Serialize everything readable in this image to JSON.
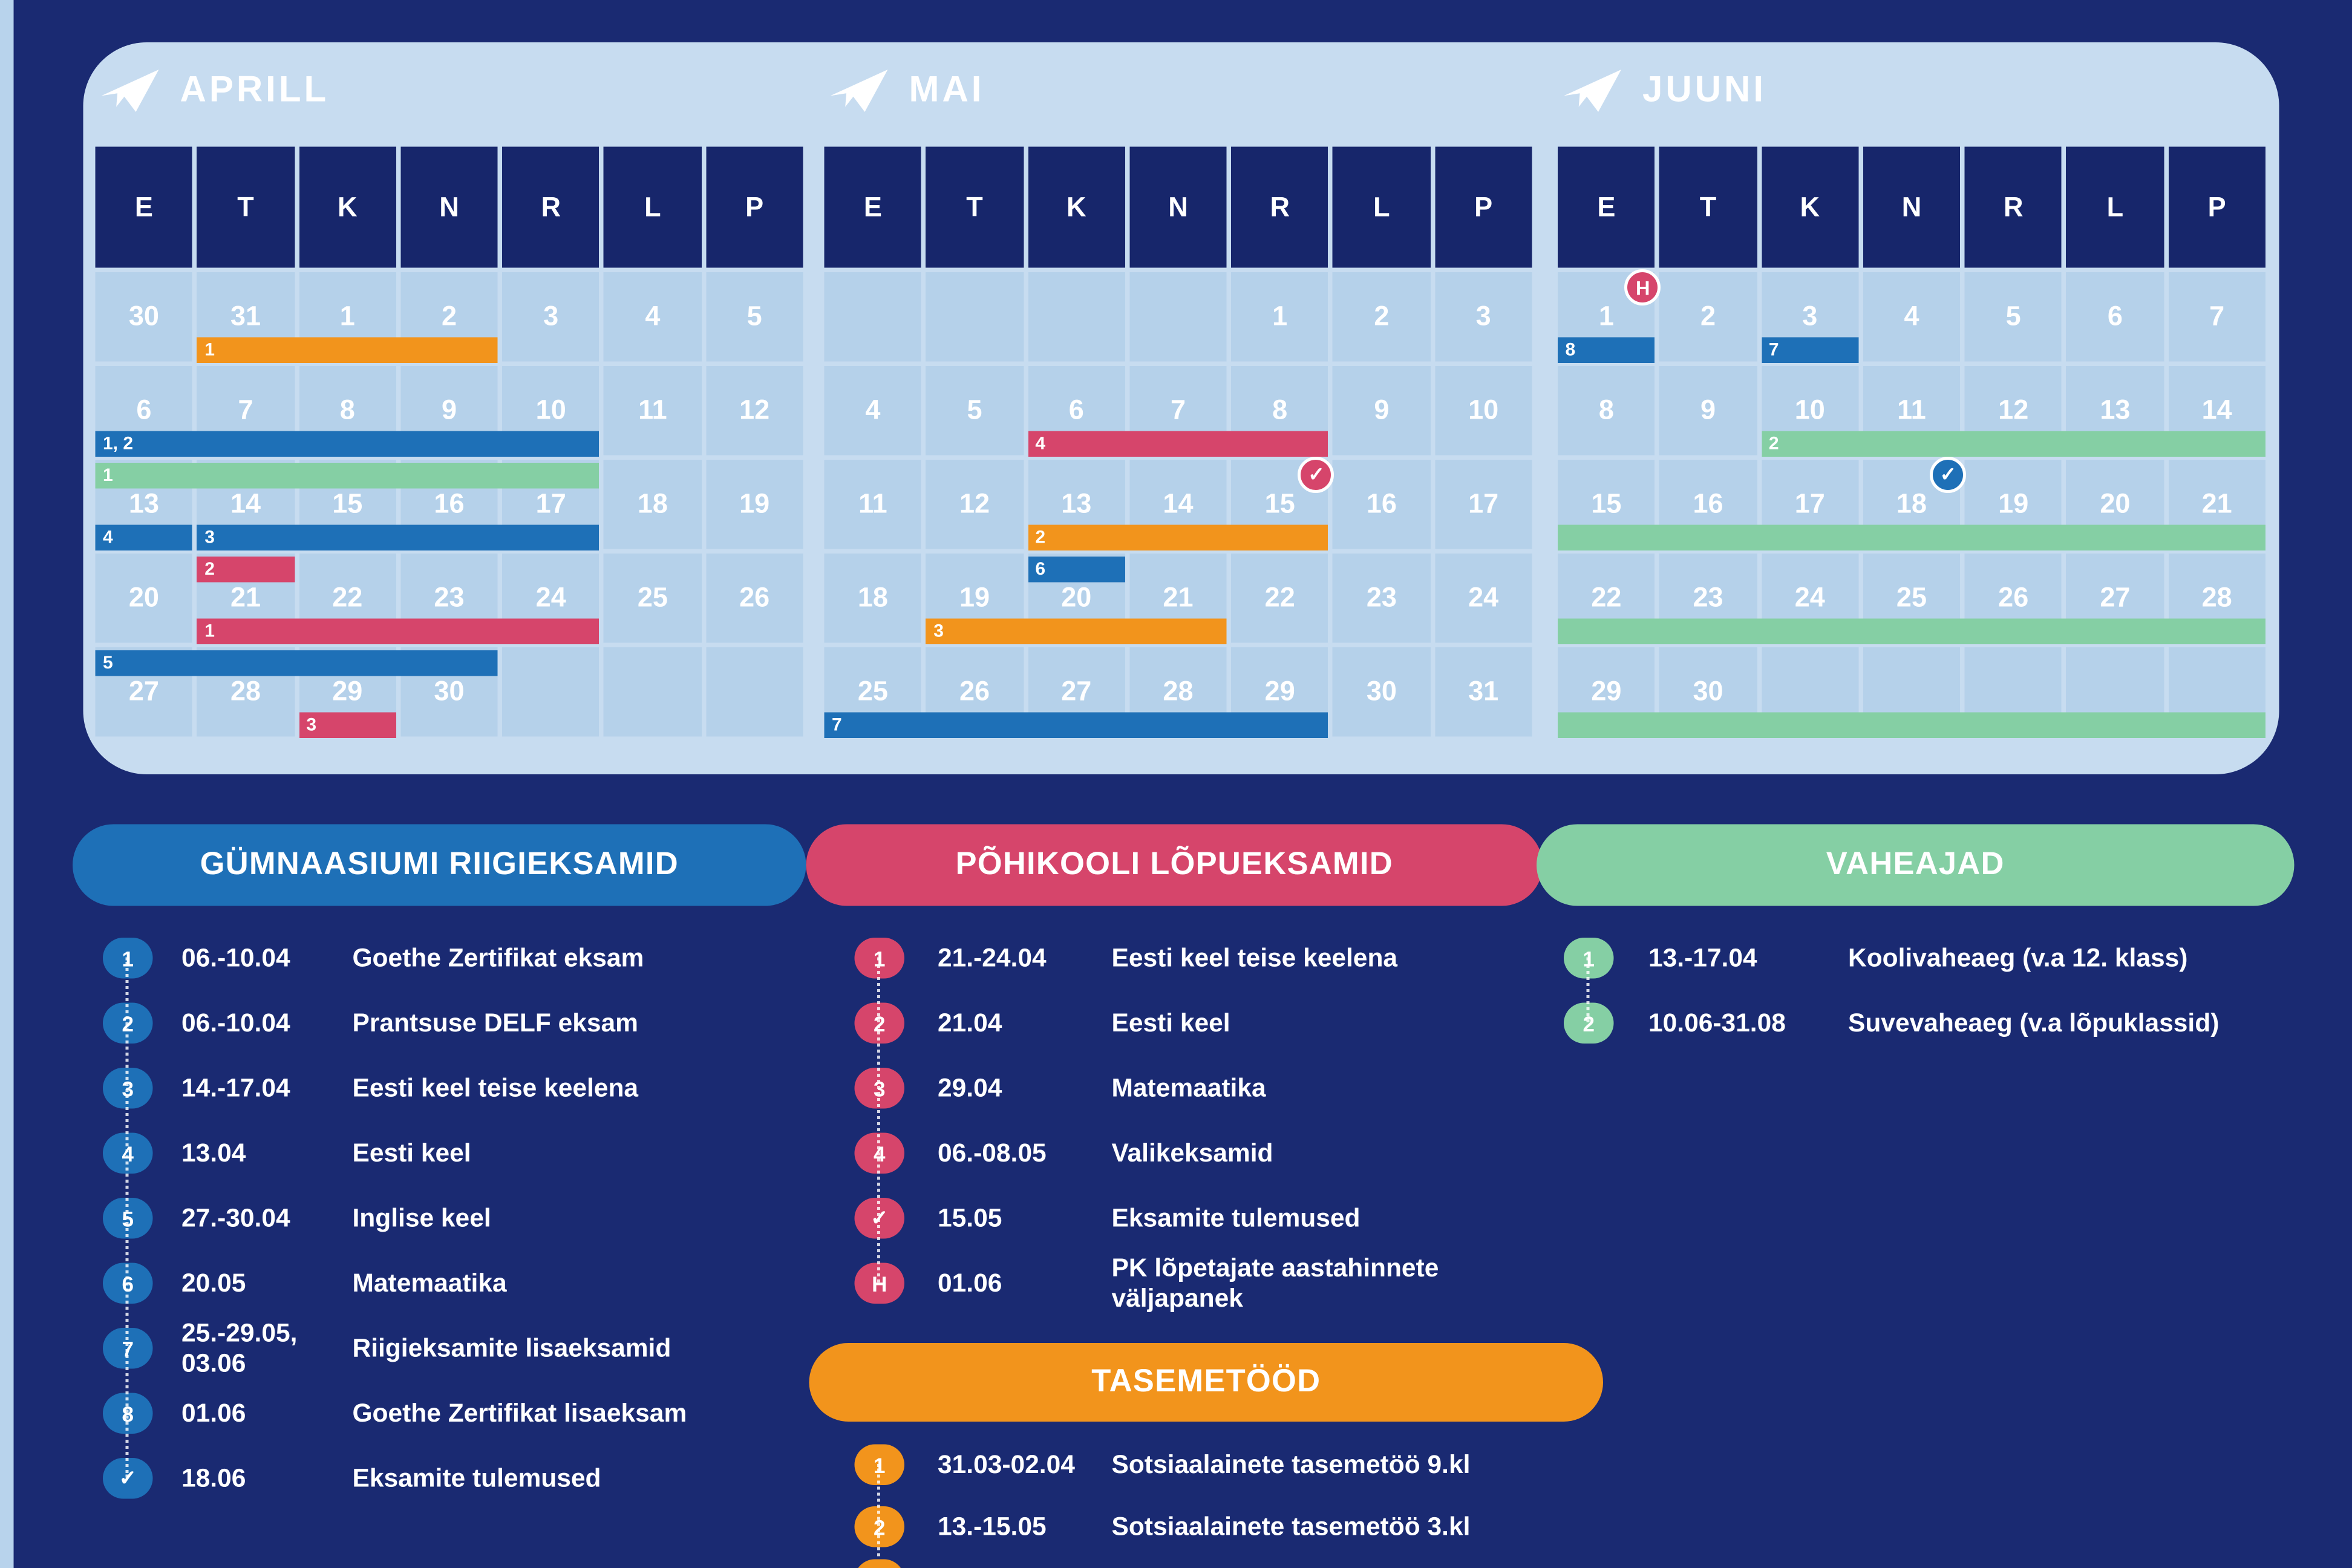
{
  "colors": {
    "bg": "#1a2a72",
    "strip": "#b8d3ec",
    "panel": "#c7dcf0",
    "cell": "#b5d1ea",
    "navy": "#17266b",
    "blue": "#1e70b7",
    "pink": "#d6456b",
    "orange": "#f2941c",
    "green": "#85cfa4"
  },
  "day_headers": [
    "E",
    "T",
    "K",
    "N",
    "R",
    "L",
    "P"
  ],
  "months": [
    {
      "name": "APRILL",
      "weeks": [
        [
          "30",
          "31",
          "1",
          "2",
          "3",
          "4",
          "5"
        ],
        [
          "6",
          "7",
          "8",
          "9",
          "10",
          "11",
          "12"
        ],
        [
          "13",
          "14",
          "15",
          "16",
          "17",
          "18",
          "19"
        ],
        [
          "20",
          "21",
          "22",
          "23",
          "24",
          "25",
          "26"
        ],
        [
          "27",
          "28",
          "29",
          "30",
          "",
          "",
          ""
        ]
      ],
      "bars": [
        {
          "label": "1",
          "color": "orange",
          "row": 0,
          "col": 1,
          "span": 3,
          "slot": "b"
        },
        {
          "label": "1, 2",
          "color": "blue",
          "row": 1,
          "col": 0,
          "span": 5,
          "slot": "b"
        },
        {
          "label": "1",
          "color": "green",
          "row": 2,
          "col": 0,
          "span": 5,
          "slot": "t"
        },
        {
          "label": "4",
          "color": "blue",
          "row": 2,
          "col": 0,
          "span": 1,
          "slot": "b"
        },
        {
          "label": "3",
          "color": "blue",
          "row": 2,
          "col": 1,
          "span": 4,
          "slot": "b"
        },
        {
          "label": "2",
          "color": "pink",
          "row": 3,
          "col": 1,
          "span": 1,
          "slot": "t"
        },
        {
          "label": "1",
          "color": "pink",
          "row": 3,
          "col": 1,
          "span": 4,
          "slot": "b"
        },
        {
          "label": "5",
          "color": "blue",
          "row": 4,
          "col": 0,
          "span": 4,
          "slot": "t"
        },
        {
          "label": "3",
          "color": "pink",
          "row": 4,
          "col": 2,
          "span": 1,
          "slot": "b"
        }
      ],
      "badges": []
    },
    {
      "name": "MAI",
      "weeks": [
        [
          "",
          "",
          "",
          "",
          "1",
          "2",
          "3"
        ],
        [
          "4",
          "5",
          "6",
          "7",
          "8",
          "9",
          "10"
        ],
        [
          "11",
          "12",
          "13",
          "14",
          "15",
          "16",
          "17"
        ],
        [
          "18",
          "19",
          "20",
          "21",
          "22",
          "23",
          "24"
        ],
        [
          "25",
          "26",
          "27",
          "28",
          "29",
          "30",
          "31"
        ]
      ],
      "bars": [
        {
          "label": "4",
          "color": "pink",
          "row": 1,
          "col": 2,
          "span": 3,
          "slot": "b"
        },
        {
          "label": "2",
          "color": "orange",
          "row": 2,
          "col": 2,
          "span": 3,
          "slot": "b"
        },
        {
          "label": "6",
          "color": "blue",
          "row": 3,
          "col": 2,
          "span": 1,
          "slot": "t"
        },
        {
          "label": "3",
          "color": "orange",
          "row": 3,
          "col": 1,
          "span": 3,
          "slot": "b"
        },
        {
          "label": "7",
          "color": "blue",
          "row": 4,
          "col": 0,
          "span": 5,
          "slot": "b"
        }
      ],
      "badges": [
        {
          "type": "check",
          "color": "pink",
          "row": 2,
          "col": 4
        }
      ]
    },
    {
      "name": "JUUNI",
      "weeks": [
        [
          "1",
          "2",
          "3",
          "4",
          "5",
          "6",
          "7"
        ],
        [
          "8",
          "9",
          "10",
          "11",
          "12",
          "13",
          "14"
        ],
        [
          "15",
          "16",
          "17",
          "18",
          "19",
          "20",
          "21"
        ],
        [
          "22",
          "23",
          "24",
          "25",
          "26",
          "27",
          "28"
        ],
        [
          "29",
          "30",
          "",
          "",
          "",
          "",
          ""
        ]
      ],
      "bars": [
        {
          "label": "8",
          "color": "blue",
          "row": 0,
          "col": 0,
          "span": 1,
          "slot": "b"
        },
        {
          "label": "7",
          "color": "blue",
          "row": 0,
          "col": 2,
          "span": 1,
          "slot": "b"
        },
        {
          "label": "2",
          "color": "green",
          "row": 1,
          "col": 2,
          "span": 5,
          "slot": "b"
        },
        {
          "label": "",
          "color": "green",
          "row": 2,
          "col": 0,
          "span": 7,
          "slot": "b"
        },
        {
          "label": "",
          "color": "green",
          "row": 3,
          "col": 0,
          "span": 7,
          "slot": "b"
        },
        {
          "label": "",
          "color": "green",
          "row": 4,
          "col": 0,
          "span": 7,
          "slot": "b"
        }
      ],
      "badges": [
        {
          "type": "H",
          "color": "pink",
          "row": 0,
          "col": 0
        },
        {
          "type": "check",
          "color": "blue",
          "row": 2,
          "col": 3
        }
      ]
    }
  ],
  "legend": {
    "sections": [
      {
        "id": "gymnaasium",
        "title": "GÜMNAASIUMI RIIGIEKSAMID",
        "color": "blue",
        "items": [
          {
            "badge": "1",
            "date": "06.-10.04",
            "desc": "Goethe Zertifikat eksam"
          },
          {
            "badge": "2",
            "date": "06.-10.04",
            "desc": "Prantsuse DELF eksam"
          },
          {
            "badge": "3",
            "date": "14.-17.04",
            "desc": "Eesti keel teise keelena"
          },
          {
            "badge": "4",
            "date": "13.04",
            "desc": "Eesti keel"
          },
          {
            "badge": "5",
            "date": "27.-30.04",
            "desc": "Inglise keel"
          },
          {
            "badge": "6",
            "date": "20.05",
            "desc": "Matemaatika"
          },
          {
            "badge": "7",
            "date": "25.-29.05, 03.06",
            "desc": "Riigieksamite lisaeksamid"
          },
          {
            "badge": "8",
            "date": "01.06",
            "desc": "Goethe Zertifikat lisaeksam"
          },
          {
            "badge": "✓",
            "date": "18.06",
            "desc": "Eksamite tulemused"
          }
        ]
      },
      {
        "id": "pohikool",
        "title": "PÕHIKOOLI LÕPUEKSAMID",
        "color": "pink",
        "items": [
          {
            "badge": "1",
            "date": "21.-24.04",
            "desc": "Eesti keel teise keelena"
          },
          {
            "badge": "2",
            "date": "21.04",
            "desc": "Eesti keel"
          },
          {
            "badge": "3",
            "date": "29.04",
            "desc": "Matemaatika"
          },
          {
            "badge": "4",
            "date": "06.-08.05",
            "desc": "Valikeksamid"
          },
          {
            "badge": "✓",
            "date": "15.05",
            "desc": "Eksamite tulemused"
          },
          {
            "badge": "H",
            "date": "01.06",
            "desc": "PK lõpetajate aastahinnete väljapanek"
          }
        ]
      },
      {
        "id": "vaheajad",
        "title": "VAHEAJAD",
        "color": "green",
        "items": [
          {
            "badge": "1",
            "date": "13.-17.04",
            "desc": "Koolivaheaeg (v.a 12. klass)"
          },
          {
            "badge": "2",
            "date": "10.06-31.08",
            "desc": "Suvevaheaeg (v.a lõpuklassid)"
          }
        ]
      },
      {
        "id": "tasemetood",
        "title": "TASEMETÖÖD",
        "color": "orange",
        "items": [
          {
            "badge": "1",
            "date": "31.03-02.04",
            "desc": "Sotsiaalainete tasemetöö 9.kl"
          },
          {
            "badge": "2",
            "date": "13.-15.05",
            "desc": "Sotsiaalainete tasemetöö 3.kl"
          },
          {
            "badge": "",
            "date": "",
            "desc": "",
            "cut": true
          }
        ]
      }
    ]
  }
}
